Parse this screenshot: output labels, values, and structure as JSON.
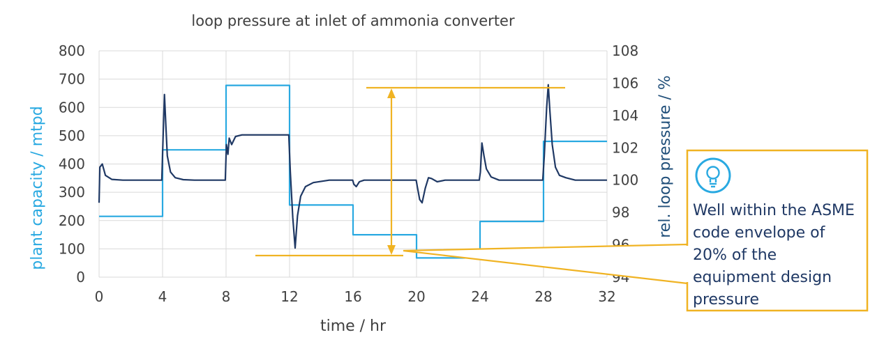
{
  "chart_data": {
    "type": "line",
    "title": "loop pressure at inlet of ammonia converter",
    "xlabel": "time / hr",
    "ylabel_left": "plant capacity / mtpd",
    "ylabel_right": "rel. loop pressure / %",
    "xlim": [
      0,
      32
    ],
    "ylim_left": [
      0,
      800
    ],
    "ylim_right": [
      94,
      108
    ],
    "x_ticks": [
      "0",
      "4",
      "8",
      "12",
      "16",
      "20",
      "24",
      "28",
      "32"
    ],
    "y_left_ticks": [
      "0",
      "100",
      "200",
      "300",
      "400",
      "500",
      "600",
      "700",
      "800"
    ],
    "y_right_ticks": [
      "94",
      "96",
      "98",
      "100",
      "102",
      "104",
      "106",
      "108"
    ],
    "grid": true,
    "series": [
      {
        "axis": "left",
        "color": "#29a9e1",
        "x": [
          0,
          4,
          4,
          8,
          8,
          12,
          12,
          16,
          16,
          20,
          20,
          24,
          24,
          28,
          28,
          32
        ],
        "y": [
          215,
          215,
          450,
          450,
          678,
          678,
          255,
          255,
          150,
          150,
          68,
          68,
          197,
          197,
          480,
          480
        ]
      },
      {
        "axis": "right",
        "color": "#1f3864",
        "x": [
          0,
          0.05,
          0.2,
          0.4,
          0.8,
          1.5,
          3.95,
          4.02,
          4.12,
          4.2,
          4.3,
          4.5,
          4.8,
          5.3,
          6,
          7.95,
          8.02,
          8.12,
          8.2,
          8.35,
          8.6,
          9,
          10,
          11.95,
          12.05,
          12.2,
          12.35,
          12.5,
          12.7,
          13,
          13.5,
          14.5,
          15.98,
          16.05,
          16.2,
          16.4,
          16.7,
          19.98,
          20.05,
          20.2,
          20.35,
          20.55,
          20.75,
          20.95,
          21.3,
          21.8,
          23.95,
          24.02,
          24.12,
          24.25,
          24.4,
          24.7,
          25.2,
          27.95,
          28.05,
          28.2,
          28.3,
          28.4,
          28.55,
          28.75,
          29,
          29.4,
          30,
          32
        ],
        "y": [
          98.6,
          100.8,
          101.0,
          100.3,
          100.05,
          100.0,
          100.0,
          102.3,
          105.3,
          103.5,
          101.5,
          100.5,
          100.15,
          100.03,
          100.0,
          100.0,
          102.2,
          101.6,
          102.6,
          102.2,
          102.7,
          102.8,
          102.8,
          102.8,
          100.5,
          97.7,
          95.8,
          97.8,
          99.0,
          99.6,
          99.85,
          100.0,
          100.0,
          99.75,
          99.6,
          99.9,
          100.0,
          100.0,
          99.6,
          98.8,
          98.6,
          99.5,
          100.15,
          100.1,
          99.9,
          100.0,
          100.0,
          100.5,
          102.3,
          101.5,
          100.7,
          100.2,
          100.0,
          100.0,
          101.5,
          104.5,
          105.9,
          104.3,
          102.2,
          100.8,
          100.3,
          100.15,
          100.0,
          100.0
        ]
      }
    ],
    "annotations": {
      "callout_text_lines": [
        "Well within the ASME",
        "code envelope of",
        "20% of the",
        "equipment design",
        "pressure"
      ],
      "callout_icon": "lightbulb-icon",
      "color": "#f0b323"
    }
  }
}
